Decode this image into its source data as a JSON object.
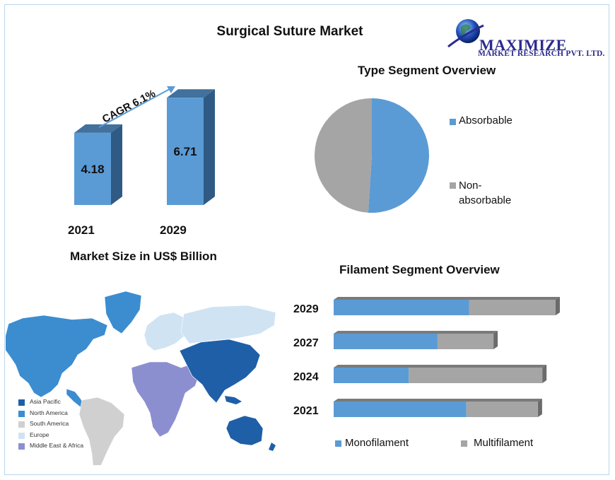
{
  "header": {
    "title": "Surgical Suture Market",
    "logo_name": "MAXIMIZE",
    "logo_sub": "MARKET RESEARCH PVT. LTD."
  },
  "market_size": {
    "caption": "Market Size in US$ Billion",
    "cagr_label": "CAGR 6.1%",
    "bars": [
      {
        "year": "2021",
        "value": "4.18"
      },
      {
        "year": "2029",
        "value": "6.71"
      }
    ]
  },
  "type_segment": {
    "title": "Type  Segment Overview",
    "legend": [
      {
        "label": "Absorbable",
        "color": "#5b9bd5"
      },
      {
        "label": "Non-\nabsorbable",
        "color": "#a5a5a5"
      }
    ]
  },
  "filament_segment": {
    "title": "Filament  Segment  Overview",
    "rows": [
      "2029",
      "2027",
      "2024",
      "2021"
    ],
    "legend": [
      {
        "label": "Monofilament",
        "color": "#5b9bd5"
      },
      {
        "label": "Multifilament",
        "color": "#a5a5a5"
      }
    ]
  },
  "map": {
    "legend": [
      {
        "label": "Asia Pacific",
        "color": "#1f5fa8"
      },
      {
        "label": "North America",
        "color": "#3b8dd0"
      },
      {
        "label": "South America",
        "color": "#d0d0d0"
      },
      {
        "label": "Europe",
        "color": "#cfe3f3"
      },
      {
        "label": "Middle East & Africa",
        "color": "#8c8fcf"
      }
    ],
    "icon": "world-map-icon"
  },
  "chart_data": [
    {
      "type": "bar",
      "title": "",
      "xlabel": "Market Size in US$ Billion",
      "categories": [
        "2021",
        "2029"
      ],
      "values": [
        4.18,
        6.71
      ],
      "annotation": "CAGR 6.1%",
      "colors": [
        "#5b9bd5"
      ]
    },
    {
      "type": "pie",
      "title": "Type  Segment Overview",
      "labels": [
        "Absorbable",
        "Non-absorbable"
      ],
      "values": [
        51,
        49
      ],
      "colors": [
        "#5b9bd5",
        "#a5a5a5"
      ],
      "legend": "right"
    },
    {
      "type": "bar",
      "orientation": "horizontal",
      "stacked": true,
      "title": "Filament  Segment  Overview",
      "categories": [
        "2029",
        "2027",
        "2024",
        "2021"
      ],
      "series": [
        {
          "name": "Monofilament",
          "values": [
            61,
            65,
            36,
            65
          ],
          "color": "#5b9bd5"
        },
        {
          "name": "Multifilament",
          "values": [
            39,
            35,
            64,
            35
          ],
          "color": "#a5a5a5"
        }
      ],
      "totals_relative": [
        1.0,
        0.72,
        0.94,
        0.92
      ],
      "legend": "bottom"
    }
  ]
}
